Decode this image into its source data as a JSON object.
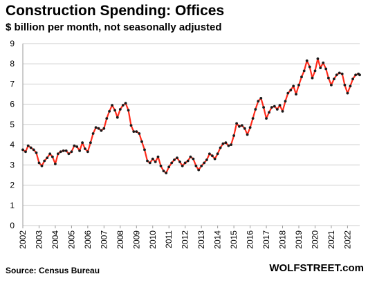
{
  "chart_data": {
    "type": "line",
    "title": "Construction  Spending:  Offices",
    "subtitle": "$ billion per month, not seasonally adjusted",
    "xlabel": "",
    "ylabel": "",
    "ylim": [
      0,
      9
    ],
    "xlim": [
      2002,
      2022.75
    ],
    "grid": true,
    "y_ticks": [
      "0",
      "1",
      "2",
      "3",
      "4",
      "5",
      "6",
      "7",
      "8",
      "9"
    ],
    "x_ticks": [
      "2002",
      "2003",
      "2004",
      "2005",
      "2006",
      "2007",
      "2008",
      "2009",
      "2010",
      "2011",
      "2012",
      "2013",
      "2014",
      "2015",
      "2016",
      "2017",
      "2018",
      "2019",
      "2020",
      "2021",
      "2022"
    ],
    "colors": {
      "line": "#ff2a1a",
      "marker": "#1a1a1a",
      "grid": "#cccccc"
    },
    "series": [
      {
        "points": [
          [
            2002.0,
            3.75
          ],
          [
            2002.17,
            3.65
          ],
          [
            2002.33,
            3.95
          ],
          [
            2002.5,
            3.85
          ],
          [
            2002.67,
            3.75
          ],
          [
            2002.83,
            3.6
          ],
          [
            2003.0,
            3.1
          ],
          [
            2003.17,
            2.95
          ],
          [
            2003.33,
            3.2
          ],
          [
            2003.5,
            3.35
          ],
          [
            2003.67,
            3.55
          ],
          [
            2003.83,
            3.4
          ],
          [
            2004.0,
            3.05
          ],
          [
            2004.17,
            3.55
          ],
          [
            2004.33,
            3.65
          ],
          [
            2004.5,
            3.7
          ],
          [
            2004.67,
            3.7
          ],
          [
            2004.83,
            3.55
          ],
          [
            2005.0,
            3.65
          ],
          [
            2005.17,
            3.95
          ],
          [
            2005.33,
            3.9
          ],
          [
            2005.5,
            3.7
          ],
          [
            2005.67,
            4.1
          ],
          [
            2005.83,
            3.8
          ],
          [
            2006.0,
            3.65
          ],
          [
            2006.17,
            4.1
          ],
          [
            2006.33,
            4.55
          ],
          [
            2006.5,
            4.85
          ],
          [
            2006.67,
            4.8
          ],
          [
            2006.83,
            4.7
          ],
          [
            2007.0,
            4.8
          ],
          [
            2007.17,
            5.3
          ],
          [
            2007.33,
            5.65
          ],
          [
            2007.5,
            5.95
          ],
          [
            2007.67,
            5.7
          ],
          [
            2007.83,
            5.35
          ],
          [
            2008.0,
            5.75
          ],
          [
            2008.17,
            5.95
          ],
          [
            2008.33,
            6.05
          ],
          [
            2008.5,
            5.7
          ],
          [
            2008.67,
            4.95
          ],
          [
            2008.83,
            4.65
          ],
          [
            2009.0,
            4.65
          ],
          [
            2009.17,
            4.55
          ],
          [
            2009.33,
            4.15
          ],
          [
            2009.5,
            3.75
          ],
          [
            2009.67,
            3.2
          ],
          [
            2009.83,
            3.1
          ],
          [
            2010.0,
            3.3
          ],
          [
            2010.17,
            3.15
          ],
          [
            2010.33,
            3.4
          ],
          [
            2010.5,
            2.95
          ],
          [
            2010.67,
            2.7
          ],
          [
            2010.83,
            2.6
          ],
          [
            2011.0,
            2.9
          ],
          [
            2011.17,
            3.1
          ],
          [
            2011.33,
            3.25
          ],
          [
            2011.5,
            3.35
          ],
          [
            2011.67,
            3.15
          ],
          [
            2011.83,
            2.95
          ],
          [
            2012.0,
            3.1
          ],
          [
            2012.17,
            3.2
          ],
          [
            2012.33,
            3.4
          ],
          [
            2012.5,
            3.3
          ],
          [
            2012.67,
            2.95
          ],
          [
            2012.83,
            2.75
          ],
          [
            2013.0,
            2.95
          ],
          [
            2013.17,
            3.1
          ],
          [
            2013.33,
            3.25
          ],
          [
            2013.5,
            3.55
          ],
          [
            2013.67,
            3.45
          ],
          [
            2013.83,
            3.3
          ],
          [
            2014.0,
            3.55
          ],
          [
            2014.17,
            3.85
          ],
          [
            2014.33,
            4.05
          ],
          [
            2014.5,
            4.1
          ],
          [
            2014.67,
            3.95
          ],
          [
            2014.83,
            4.0
          ],
          [
            2015.0,
            4.45
          ],
          [
            2015.17,
            5.05
          ],
          [
            2015.33,
            4.9
          ],
          [
            2015.5,
            4.95
          ],
          [
            2015.67,
            4.8
          ],
          [
            2015.83,
            4.5
          ],
          [
            2016.0,
            4.85
          ],
          [
            2016.17,
            5.3
          ],
          [
            2016.33,
            5.75
          ],
          [
            2016.5,
            6.15
          ],
          [
            2016.67,
            6.3
          ],
          [
            2016.83,
            5.85
          ],
          [
            2017.0,
            5.3
          ],
          [
            2017.17,
            5.6
          ],
          [
            2017.33,
            5.85
          ],
          [
            2017.5,
            5.9
          ],
          [
            2017.67,
            5.75
          ],
          [
            2017.83,
            5.95
          ],
          [
            2018.0,
            5.65
          ],
          [
            2018.17,
            6.15
          ],
          [
            2018.33,
            6.55
          ],
          [
            2018.5,
            6.7
          ],
          [
            2018.67,
            6.9
          ],
          [
            2018.83,
            6.5
          ],
          [
            2019.0,
            6.95
          ],
          [
            2019.17,
            7.35
          ],
          [
            2019.33,
            7.65
          ],
          [
            2019.5,
            8.15
          ],
          [
            2019.67,
            7.85
          ],
          [
            2019.83,
            7.3
          ],
          [
            2020.0,
            7.65
          ],
          [
            2020.17,
            8.25
          ],
          [
            2020.33,
            7.8
          ],
          [
            2020.5,
            8.05
          ],
          [
            2020.67,
            7.75
          ],
          [
            2020.83,
            7.3
          ],
          [
            2021.0,
            6.95
          ],
          [
            2021.17,
            7.25
          ],
          [
            2021.33,
            7.45
          ],
          [
            2021.5,
            7.55
          ],
          [
            2021.67,
            7.5
          ],
          [
            2021.83,
            6.95
          ],
          [
            2022.0,
            6.55
          ],
          [
            2022.17,
            6.9
          ],
          [
            2022.33,
            7.25
          ],
          [
            2022.5,
            7.45
          ],
          [
            2022.67,
            7.5
          ],
          [
            2022.75,
            7.45
          ]
        ]
      }
    ]
  },
  "footer": {
    "source": "Source: Census Bureau",
    "brand": "WOLFSTREET.com"
  }
}
